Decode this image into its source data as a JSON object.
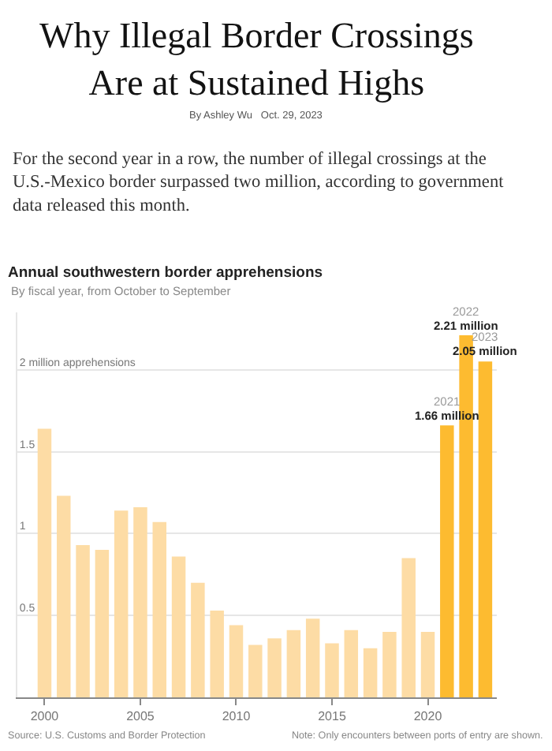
{
  "chart_data": {
    "type": "bar",
    "title": "Annual southwestern border apprehensions",
    "subtitle": "By fiscal year, from October to September",
    "annotations": [
      "Why Illegal Border Crossings Are at Sustained Highs",
      "By Ashley Wu   Oct. 29, 2023",
      "For the second year in a row, the number of illegal crossings at the U.S.-Mexico border surpassed two million, according to government data released this month.",
      "Source: U.S. Customs and Border Protection",
      "Note: Only encounters between ports of entry are shown.",
      {
        "text": "2021",
        "x": 2021,
        "y": 1.66
      },
      {
        "text": "2022",
        "x": 2022,
        "y": 2.21
      },
      {
        "text": "2023",
        "x": 2023,
        "y": 2.05
      }
    ],
    "x": [
      2000,
      2001,
      2002,
      2003,
      2004,
      2005,
      2006,
      2007,
      2008,
      2009,
      2010,
      2011,
      2012,
      2013,
      2014,
      2015,
      2016,
      2017,
      2018,
      2019,
      2020,
      2021,
      2022,
      2023
    ],
    "values": [
      1.64,
      1.23,
      0.93,
      0.9,
      1.14,
      1.16,
      1.07,
      0.86,
      0.7,
      0.53,
      0.44,
      0.32,
      0.36,
      0.41,
      0.48,
      0.33,
      0.41,
      0.3,
      0.4,
      0.85,
      0.4,
      1.66,
      2.21,
      2.05
    ],
    "colors": [
      "#fddca5",
      "#fddca5",
      "#fddca5",
      "#fddca5",
      "#fddca5",
      "#fddca5",
      "#fddca5",
      "#fddca5",
      "#fddca5",
      "#fddca5",
      "#fddca5",
      "#fddca5",
      "#fddca5",
      "#fddca5",
      "#fddca5",
      "#fddca5",
      "#fddca5",
      "#fddca5",
      "#fddca5",
      "#fddca5",
      "#fddca5",
      "#fdbb30",
      "#fdbb30",
      "#fdbb30"
    ],
    "value_labels": [
      null,
      null,
      null,
      null,
      null,
      null,
      null,
      null,
      null,
      null,
      null,
      null,
      null,
      null,
      null,
      null,
      null,
      null,
      null,
      null,
      null,
      "1.66 million",
      "2.21 million",
      "2.05 million"
    ],
    "xlim": [
      1998.5,
      2023.6
    ],
    "xticks": [
      2000,
      2005,
      2010,
      2015,
      2020
    ],
    "ylim": [
      0,
      2.35
    ],
    "yticks": [
      {
        "value": 0,
        "label": null
      },
      0.5,
      1,
      1.5,
      {
        "value": 2,
        "label": "2 million apprehensions"
      }
    ],
    "grid": "y"
  }
}
